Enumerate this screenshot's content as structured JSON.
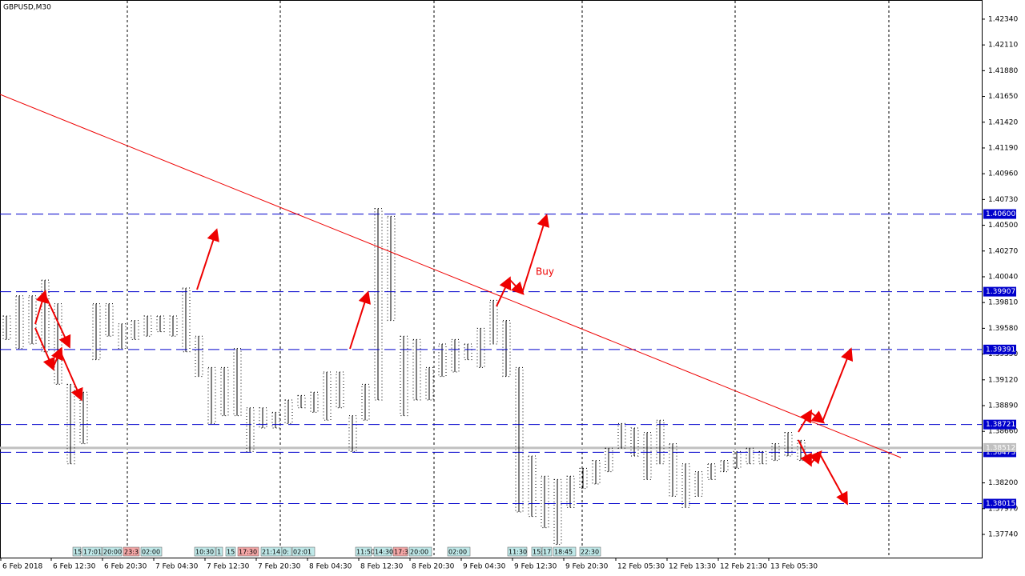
{
  "chart_data": {
    "type": "hilo",
    "title": "GBPUSD,M30",
    "annotation": "Buy",
    "ylim": [
      1.37533,
      1.42511
    ],
    "yticks": [
      {
        "value": 1.4234,
        "label": "1.42340"
      },
      {
        "value": 1.4211,
        "label": "1.42110"
      },
      {
        "value": 1.4188,
        "label": "1.41880"
      },
      {
        "value": 1.4165,
        "label": "1.41650"
      },
      {
        "value": 1.4142,
        "label": "1.41420"
      },
      {
        "value": 1.4119,
        "label": "1.41190"
      },
      {
        "value": 1.4096,
        "label": "1.40960"
      },
      {
        "value": 1.4073,
        "label": "1.40730"
      },
      {
        "value": 1.405,
        "label": "1.40500"
      },
      {
        "value": 1.4027,
        "label": "1.40270"
      },
      {
        "value": 1.4004,
        "label": "1.40040"
      },
      {
        "value": 1.3981,
        "label": "1.39810"
      },
      {
        "value": 1.3958,
        "label": "1.39580"
      },
      {
        "value": 1.3935,
        "label": "1.39350"
      },
      {
        "value": 1.3912,
        "label": "1.39120"
      },
      {
        "value": 1.3889,
        "label": "1.38890"
      },
      {
        "value": 1.3866,
        "label": "1.38660"
      },
      {
        "value": 1.382,
        "label": "1.38200"
      },
      {
        "value": 1.3797,
        "label": "1.37970"
      },
      {
        "value": 1.3774,
        "label": "1.37740"
      }
    ],
    "x_labels": [
      "6 Feb 2018",
      "6 Feb 12:30",
      "6 Feb 20:30",
      "7 Feb 04:30",
      "7 Feb 12:30",
      "7 Feb 20:30",
      "8 Feb 04:30",
      "8 Feb 12:30",
      "8 Feb 20:30",
      "9 Feb 04:30",
      "9 Feb 12:30",
      "9 Feb 20:30",
      "12 Feb 05:30",
      "12 Feb 13:30",
      "12 Feb 21:30",
      "13 Feb 05:30"
    ],
    "levels": [
      {
        "value": 1.406,
        "label": "1.40600"
      },
      {
        "value": 1.39907,
        "label": "1.39907"
      },
      {
        "value": 1.39391,
        "label": "1.39391"
      },
      {
        "value": 1.38721,
        "label": "1.38721"
      },
      {
        "value": 1.38473,
        "label": "1.38473"
      },
      {
        "value": 1.38015,
        "label": "1.38015"
      }
    ],
    "level_color": "#0000cc",
    "current_price": {
      "value": 1.38512,
      "label": "1.38512"
    },
    "bar_color": "#000000",
    "high": [
      1.3969,
      1.3987,
      1.3987,
      1.4001,
      1.398,
      1.3908,
      1.3901,
      1.398,
      1.398,
      1.3962,
      1.3965,
      1.3969,
      1.3969,
      1.3969,
      1.3994,
      1.3951,
      1.3923,
      1.3923,
      1.394,
      1.3887,
      1.3887,
      1.3883,
      1.3894,
      1.3898,
      1.3901,
      1.3919,
      1.3919,
      1.388,
      1.3908,
      1.4065,
      1.4058,
      1.3951,
      1.3948,
      1.3923,
      1.3944,
      1.3948,
      1.3944,
      1.3958,
      1.3983,
      1.3965,
      1.3923,
      1.3844,
      1.3826,
      1.3823,
      1.3826,
      1.3833,
      1.384,
      1.3851,
      1.3873,
      1.3869,
      1.3865,
      1.3876,
      1.3855,
      1.3837,
      1.383,
      1.3837,
      1.384,
      1.3848,
      1.3851,
      1.3848,
      1.3855,
      1.3865,
      1.3858
    ],
    "low": [
      1.3948,
      1.394,
      1.3944,
      1.3937,
      1.3908,
      1.3837,
      1.3855,
      1.393,
      1.3951,
      1.394,
      1.3948,
      1.3951,
      1.3955,
      1.3951,
      1.3937,
      1.3915,
      1.3873,
      1.388,
      1.388,
      1.3848,
      1.3869,
      1.3869,
      1.3873,
      1.3887,
      1.3883,
      1.3876,
      1.3887,
      1.3848,
      1.3876,
      1.3894,
      1.3965,
      1.388,
      1.3894,
      1.3894,
      1.3915,
      1.3919,
      1.393,
      1.3923,
      1.3944,
      1.3915,
      1.3794,
      1.379,
      1.378,
      1.3765,
      1.3798,
      1.3815,
      1.3819,
      1.383,
      1.3851,
      1.3844,
      1.3823,
      1.3837,
      1.3808,
      1.3798,
      1.3808,
      1.3823,
      1.383,
      1.3833,
      1.3837,
      1.3837,
      1.384,
      1.3844,
      1.384
    ],
    "event_tags": [
      "15",
      "17:01",
      "20:00",
      "23:3",
      "02:00",
      "10:30",
      "1",
      "15",
      "17:30",
      "21:14",
      "0:",
      "02:01",
      "11:50",
      "14:30",
      "17:3",
      "20:00",
      "02:00",
      "11:30",
      "15:",
      "17",
      "18:45",
      "22:30"
    ]
  }
}
